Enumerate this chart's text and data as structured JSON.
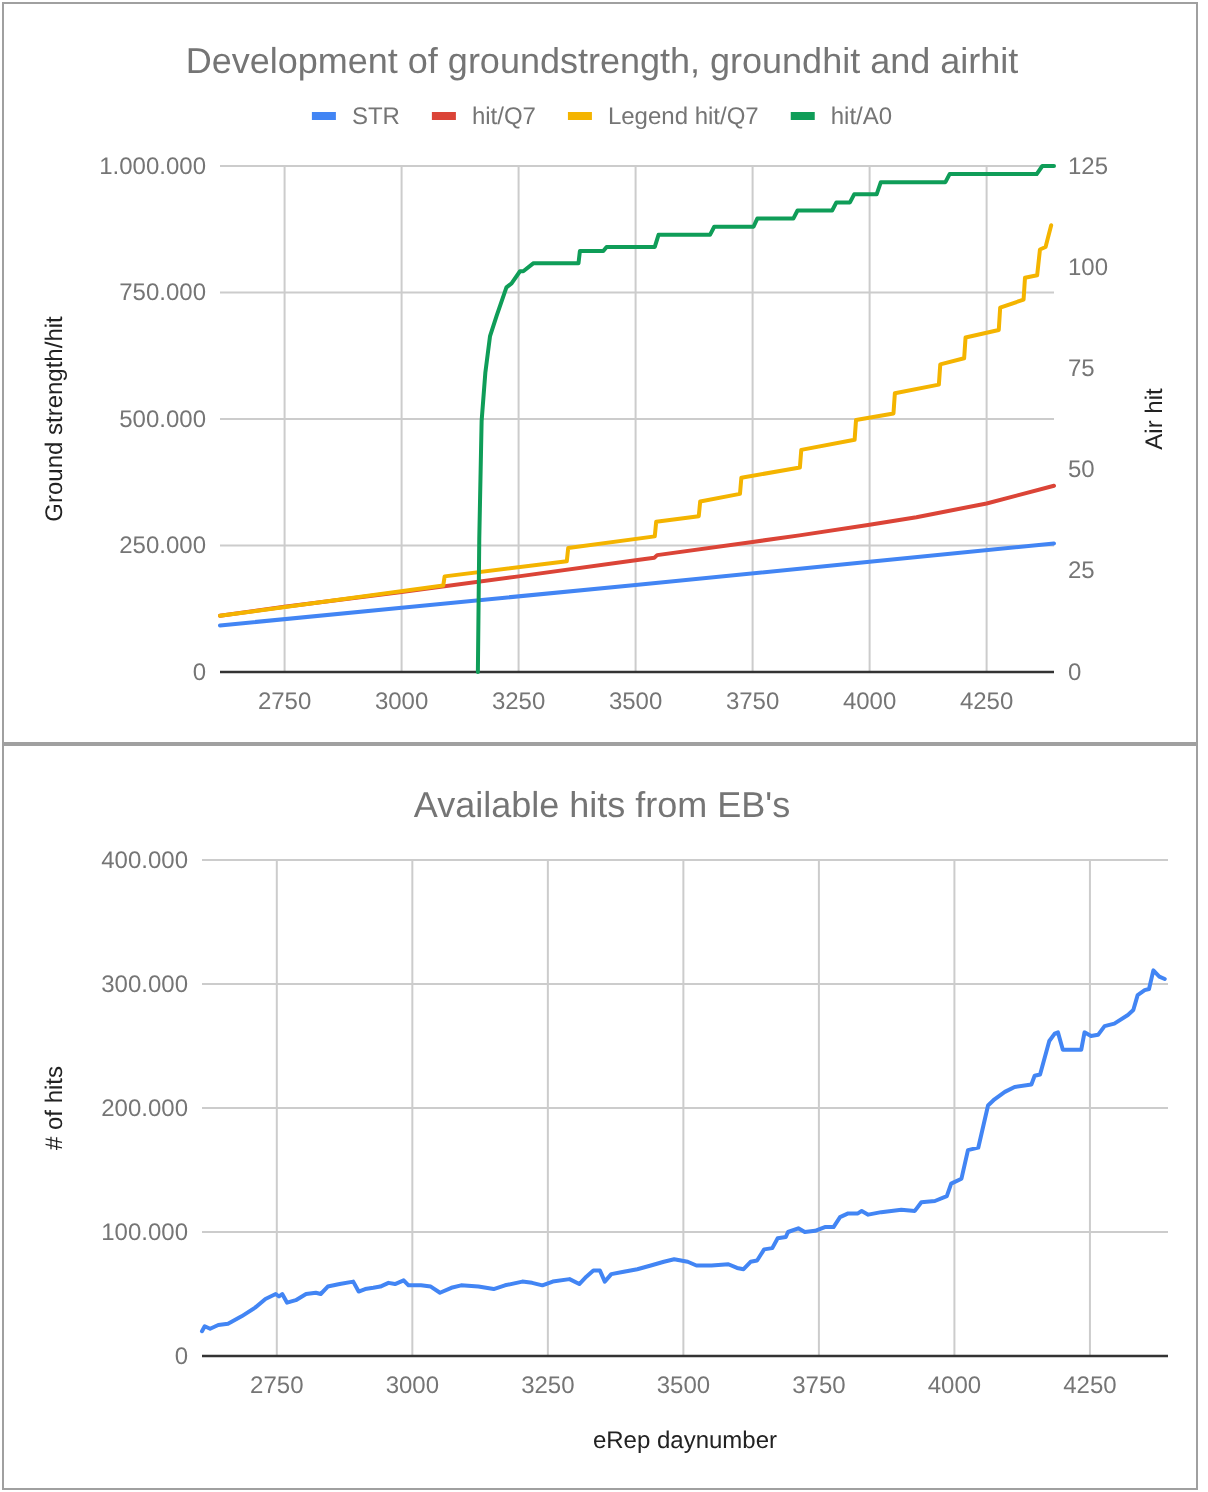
{
  "chart_data": [
    {
      "type": "line",
      "title": "Development of groundstrength, groundhit and airhit",
      "ylabel": "Ground strength/hit",
      "y2label": "Air hit",
      "legend": "top",
      "grid": true,
      "xlim": [
        2612,
        4394
      ],
      "xticks": [
        2750,
        3000,
        3250,
        3500,
        3750,
        4000,
        4250
      ],
      "ylim": [
        0,
        1000000
      ],
      "yticks": [
        0,
        {
          "value": 250000,
          "label": "250.000"
        },
        {
          "value": 500000,
          "label": "500.000"
        },
        {
          "value": 750000,
          "label": "750.000"
        },
        {
          "value": 1000000,
          "label": "1.000.000"
        }
      ],
      "y2lim": [
        0,
        125
      ],
      "y2ticks": [
        0,
        25,
        50,
        75,
        100,
        125
      ],
      "series": [
        {
          "name": "STR",
          "color": "#4285f4",
          "x": [
            2612,
            3000,
            3500,
            4000,
            4394
          ],
          "values": [
            92000,
            127000,
            172000,
            218000,
            254000
          ]
        },
        {
          "name": "hit/Q7",
          "color": "#db4437",
          "x": [
            2612,
            2750,
            3000,
            3250,
            3500,
            3540,
            3546,
            3750,
            3850,
            4000,
            4100,
            4250,
            4394
          ],
          "values": [
            111000,
            129000,
            158000,
            189000,
            221000,
            226000,
            231000,
            257000,
            270000,
            291000,
            306000,
            333000,
            368000
          ]
        },
        {
          "name": "Legend hit/Q7",
          "color": "#f4b400",
          "x": [
            2612,
            3089,
            3092,
            3353,
            3356,
            3541,
            3544,
            3635,
            3638,
            3723,
            3726,
            3851,
            3854,
            3968,
            3971,
            4051,
            4054,
            4148,
            4151,
            4202,
            4205,
            4276,
            4279,
            4329,
            4332,
            4358,
            4364,
            4376,
            4388
          ],
          "values": [
            111000,
            171000,
            189000,
            219000,
            245000,
            268000,
            297000,
            308000,
            337000,
            352000,
            384000,
            404000,
            439000,
            459000,
            498000,
            511000,
            551000,
            568000,
            608000,
            620000,
            661000,
            676000,
            720000,
            736000,
            779000,
            784000,
            835000,
            840000,
            883000
          ]
        },
        {
          "name": "hit/A0",
          "color": "#0f9d58",
          "axis": "y2",
          "x": [
            3163,
            3166,
            3171,
            3179,
            3189,
            3203,
            3224,
            3235,
            3253,
            3260,
            3282,
            3378,
            3381,
            3431,
            3438,
            3541,
            3549,
            3659,
            3668,
            3752,
            3760,
            3837,
            3846,
            3920,
            3929,
            3958,
            3967,
            4015,
            4024,
            4162,
            4171,
            4357,
            4369,
            4394
          ],
          "values": [
            0,
            33,
            62,
            74,
            83,
            88,
            95,
            96,
            99,
            99,
            101,
            101,
            104,
            104,
            105,
            105,
            108,
            108,
            110,
            110,
            112,
            112,
            114,
            114,
            116,
            116,
            118,
            118,
            121,
            121,
            123,
            123,
            125,
            125
          ]
        }
      ]
    },
    {
      "type": "line",
      "title": "Available hits from EB's",
      "xlabel": "eRep daynumber",
      "ylabel": "# of hits",
      "grid": true,
      "xlim": [
        2612,
        4394
      ],
      "xticks": [
        2750,
        3000,
        3250,
        3500,
        3750,
        4000,
        4250
      ],
      "ylim": [
        0,
        400000
      ],
      "yticks": [
        0,
        {
          "value": 100000,
          "label": "100.000"
        },
        {
          "value": 200000,
          "label": "200.000"
        },
        {
          "value": 300000,
          "label": "300.000"
        },
        {
          "value": 400000,
          "label": "400.000"
        }
      ],
      "series": [
        {
          "color": "#4285f4",
          "x": [
            2612,
            2617,
            2627,
            2642,
            2660,
            2685,
            2710,
            2729,
            2748,
            2754,
            2760,
            2769,
            2785,
            2804,
            2822,
            2831,
            2844,
            2866,
            2891,
            2901,
            2913,
            2928,
            2941,
            2956,
            2968,
            2984,
            2993,
            3016,
            3034,
            3051,
            3072,
            3090,
            3122,
            3150,
            3171,
            3203,
            3221,
            3240,
            3259,
            3290,
            3308,
            3321,
            3334,
            3346,
            3355,
            3367,
            3390,
            3415,
            3440,
            3464,
            3483,
            3508,
            3524,
            3552,
            3583,
            3599,
            3611,
            3624,
            3636,
            3649,
            3664,
            3674,
            3689,
            3693,
            3712,
            3724,
            3743,
            3761,
            3777,
            3789,
            3804,
            3822,
            3829,
            3841,
            3865,
            3902,
            3927,
            3939,
            3964,
            3986,
            3994,
            4013,
            4025,
            4044,
            4062,
            4074,
            4093,
            4111,
            4142,
            4148,
            4158,
            4175,
            4185,
            4191,
            4200,
            4234,
            4240,
            4252,
            4265,
            4277,
            4295,
            4320,
            4330,
            4338,
            4351,
            4359,
            4367,
            4378,
            4388
          ],
          "values": [
            20000,
            24000,
            22000,
            25000,
            26000,
            32000,
            39000,
            46000,
            50000,
            48000,
            50000,
            43000,
            45000,
            50000,
            51000,
            50000,
            56000,
            58000,
            60000,
            52000,
            54000,
            55000,
            56000,
            59000,
            58000,
            61000,
            57000,
            57000,
            56000,
            51000,
            55000,
            57000,
            56000,
            54000,
            57000,
            60000,
            59000,
            57000,
            60000,
            62000,
            58000,
            64000,
            69000,
            69000,
            60000,
            66000,
            68000,
            70000,
            73000,
            76000,
            78000,
            76000,
            73000,
            73000,
            74000,
            71000,
            70000,
            76000,
            77000,
            86000,
            87000,
            95000,
            96000,
            100000,
            103000,
            100000,
            101000,
            104000,
            104000,
            112000,
            115000,
            115000,
            117000,
            114000,
            116000,
            118000,
            117000,
            124000,
            125000,
            129000,
            139000,
            143000,
            166000,
            168000,
            202000,
            207000,
            213000,
            217000,
            219000,
            226000,
            227000,
            254000,
            260000,
            261000,
            247000,
            247000,
            261000,
            258000,
            259000,
            266000,
            268000,
            275000,
            279000,
            291000,
            295000,
            296000,
            311000,
            306000,
            304000
          ]
        }
      ]
    }
  ]
}
